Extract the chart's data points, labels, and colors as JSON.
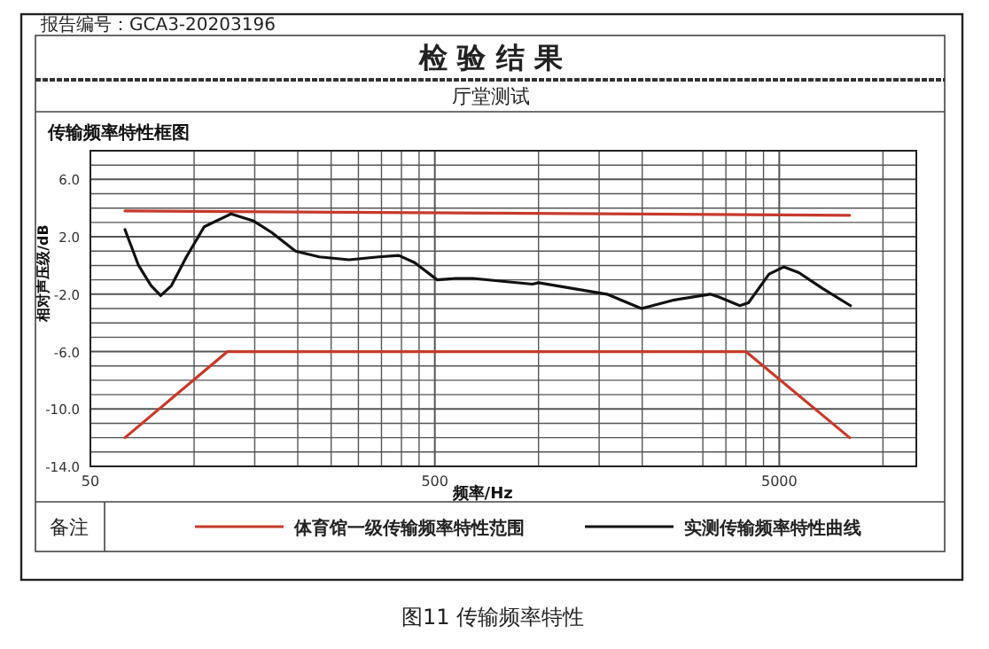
{
  "chart_data": {
    "type": "line",
    "title": "传输频率特性框图",
    "xlabel": "频率/Hz",
    "ylabel": "相对声压级/dB",
    "annotations": [
      "报告编号：GCA3-20203196",
      "检 验 结 果",
      "厅堂测试",
      "备注",
      "图11 传输频率特性"
    ],
    "log": "x",
    "grid": true,
    "legend": "bottom",
    "line_style": "solid",
    "marker": "none",
    "xlim": [
      50,
      12500
    ],
    "ylim": [
      -14,
      8
    ],
    "xticks": [
      50,
      {
        "value": 100,
        "label": null
      },
      {
        "value": 150,
        "label": null
      },
      {
        "value": 200,
        "label": null
      },
      {
        "value": 250,
        "label": null
      },
      {
        "value": 300,
        "label": null
      },
      {
        "value": 350,
        "label": null
      },
      {
        "value": 400,
        "label": null
      },
      {
        "value": 450,
        "label": null
      },
      500,
      {
        "value": 1000,
        "label": null
      },
      {
        "value": 1500,
        "label": null
      },
      {
        "value": 2000,
        "label": null
      },
      {
        "value": 3000,
        "label": null
      },
      {
        "value": 3500,
        "label": null
      },
      {
        "value": 4000,
        "label": null
      },
      {
        "value": 4500,
        "label": null
      },
      5000,
      {
        "value": 10000,
        "label": null
      }
    ],
    "yticks": [
      {
        "value": -14,
        "label": "-14.0"
      },
      {
        "value": -13,
        "label": null
      },
      {
        "value": -12,
        "label": null
      },
      {
        "value": -11,
        "label": null
      },
      {
        "value": -10,
        "label": "-10.0"
      },
      {
        "value": -9,
        "label": null
      },
      {
        "value": -8,
        "label": null
      },
      {
        "value": -7,
        "label": null
      },
      {
        "value": -6,
        "label": "-6.0"
      },
      {
        "value": -5,
        "label": null
      },
      {
        "value": -4,
        "label": null
      },
      {
        "value": -3,
        "label": null
      },
      {
        "value": -2,
        "label": "-2.0"
      },
      {
        "value": -1,
        "label": null
      },
      {
        "value": 0,
        "label": null
      },
      {
        "value": 1,
        "label": null
      },
      {
        "value": 2,
        "label": "2.0"
      },
      {
        "value": 3,
        "label": null
      },
      {
        "value": 4,
        "label": null
      },
      {
        "value": 5,
        "label": null
      },
      {
        "value": 6,
        "label": "6.0"
      },
      {
        "value": 7,
        "label": null
      }
    ],
    "series": [
      {
        "name": "体育馆一级传输频率特性范围",
        "color": "#c53a2c",
        "x": [
          63,
          125,
          4000,
          8000
        ],
        "values": [
          -12,
          -6,
          -6,
          -12
        ]
      },
      {
        "color": "#c53a2c",
        "x": [
          63,
          8000
        ],
        "values": [
          3.8,
          3.5
        ]
      },
      {
        "name": "实测传输频率特性曲线",
        "color": "#111111",
        "x": [
          63,
          69,
          75,
          80,
          86,
          95,
          107,
          128,
          149,
          168,
          197,
          231,
          282,
          343,
          393,
          437,
          508,
          574,
          646,
          785,
          960,
          1000,
          1580,
          1990,
          2480,
          3150,
          3340,
          3840,
          4070,
          4670,
          5150,
          5700,
          6680,
          8050
        ],
        "values": [
          2.5,
          0.0,
          -1.4,
          -2.1,
          -1.4,
          0.6,
          2.7,
          3.6,
          3.1,
          2.3,
          1.0,
          0.6,
          0.4,
          0.6,
          0.7,
          0.2,
          -1.0,
          -0.9,
          -0.9,
          -1.1,
          -1.3,
          -1.2,
          -2.0,
          -3.0,
          -2.4,
          -2.0,
          -2.2,
          -2.8,
          -2.6,
          -0.6,
          -0.1,
          -0.5,
          -1.6,
          -2.8
        ]
      }
    ]
  }
}
